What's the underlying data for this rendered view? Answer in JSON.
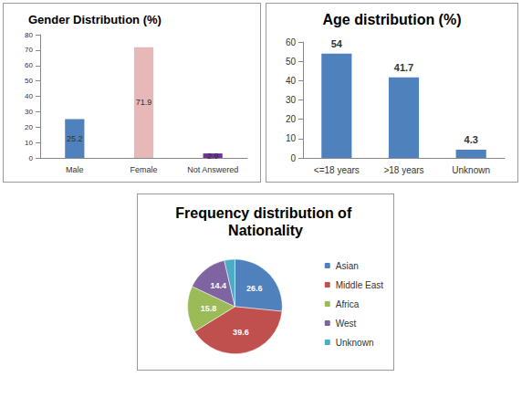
{
  "chart_data": [
    {
      "type": "bar",
      "title": "Gender Distribution (%)",
      "categories": [
        "Male",
        "Female",
        "Not Answered"
      ],
      "values": [
        25.2,
        71.9,
        2.9
      ],
      "colors": [
        "#4f81bd",
        "#e6b9b8",
        "#7030a0"
      ],
      "ylim": [
        0,
        80
      ],
      "yticks": [
        0,
        10,
        20,
        30,
        40,
        50,
        60,
        70,
        80
      ],
      "grid": false,
      "data_labels": true
    },
    {
      "type": "bar",
      "title": "Age distribution (%)",
      "categories": [
        "<=18 years",
        ">18 years",
        "Unknown"
      ],
      "values": [
        54,
        41.7,
        4.3
      ],
      "color": "#4f81bd",
      "ylim": [
        0,
        60
      ],
      "yticks": [
        0,
        10,
        20,
        30,
        40,
        50,
        60
      ],
      "grid": false,
      "data_labels": true
    },
    {
      "type": "pie",
      "title": "Frequency distribution of Nationality",
      "categories": [
        "Asian",
        "Middle East",
        "Africa",
        "West",
        "Unknown"
      ],
      "values": [
        26.6,
        39.6,
        15.8,
        14.4,
        3.6
      ],
      "colors": [
        "#4f81bd",
        "#c0504d",
        "#9bbb59",
        "#8064a2",
        "#4bacc6"
      ],
      "legend": "right",
      "data_labels": true
    }
  ]
}
